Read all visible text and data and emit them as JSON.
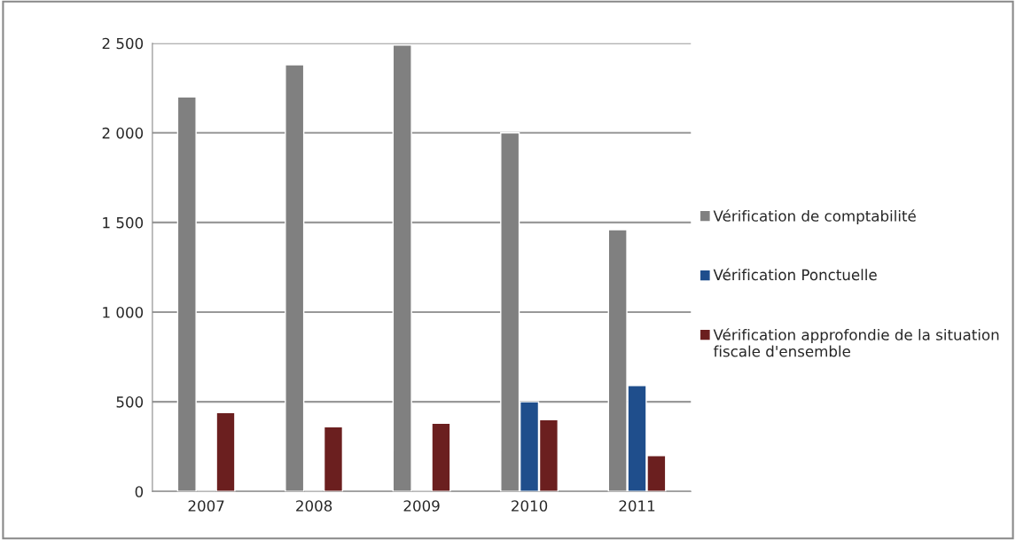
{
  "chart_data": {
    "type": "bar",
    "categories": [
      "2007",
      "2008",
      "2009",
      "2010",
      "2011"
    ],
    "series": [
      {
        "name": "Vérification de comptabilité",
        "color": "#808080",
        "values": [
          2200,
          2380,
          2490,
          2000,
          1460
        ]
      },
      {
        "name": "Vérification Ponctuelle",
        "color": "#1f4e8c",
        "values": [
          null,
          null,
          null,
          500,
          590
        ]
      },
      {
        "name": "Vérification approfondie de la situation fiscale d'ensemble",
        "color": "#6b1f1f",
        "values": [
          440,
          360,
          380,
          400,
          200
        ]
      }
    ],
    "ylim": [
      0,
      2500
    ],
    "yticks": [
      0,
      {
        "value": 500,
        "label": "500"
      },
      {
        "value": 1000,
        "label": "1 000"
      },
      {
        "value": 1500,
        "label": "1 500"
      },
      {
        "value": 2000,
        "label": "2 000"
      },
      {
        "value": 2500,
        "label": "2 500"
      }
    ],
    "grid": "y",
    "legend": "right"
  }
}
